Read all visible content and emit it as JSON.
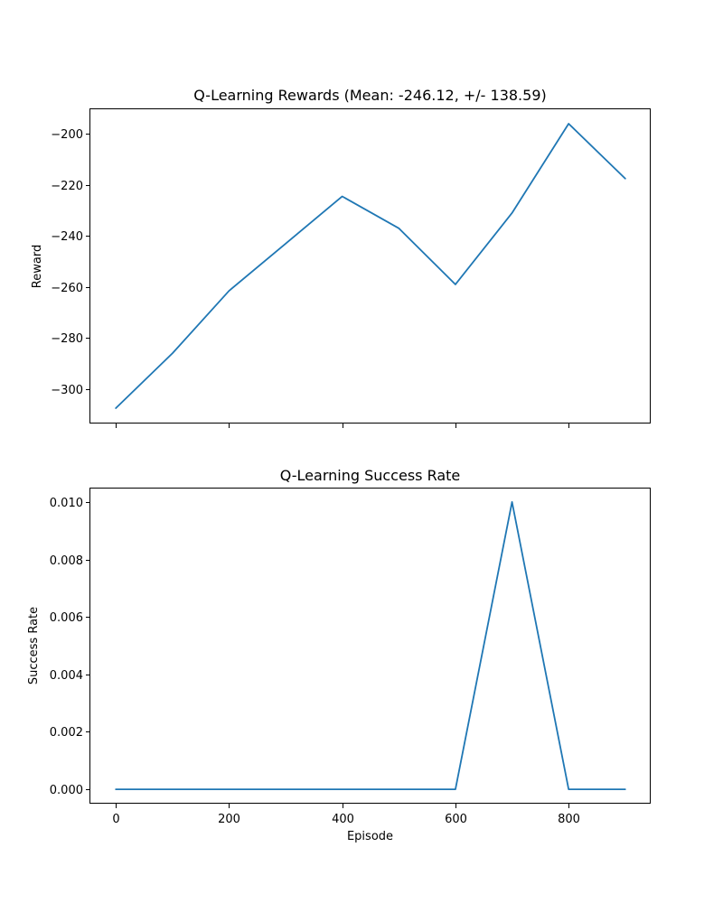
{
  "chart_data": [
    {
      "type": "line",
      "title": "Q-Learning Rewards (Mean: -246.12, +/- 138.59)",
      "xlabel": "",
      "ylabel": "Reward",
      "x": [
        0,
        100,
        200,
        300,
        400,
        500,
        600,
        700,
        800,
        900
      ],
      "series": [
        {
          "values": [
            -307.5,
            -286.0,
            -261.5,
            -243.0,
            -224.5,
            -237.0,
            -259.0,
            -231.0,
            -196.0,
            -217.5
          ],
          "color": "#1f77b4"
        }
      ],
      "xlim": [
        -45,
        945
      ],
      "ylim": [
        -313.5,
        -190.0
      ],
      "xticks": [
        0,
        200,
        400,
        600,
        800
      ],
      "yticks": [
        -300,
        -280,
        -260,
        -240,
        -220,
        -200
      ],
      "ytick_labels": [
        "−300",
        "−280",
        "−260",
        "−240",
        "−220",
        "−200"
      ],
      "show_xtick_labels": false,
      "grid": false
    },
    {
      "type": "line",
      "title": "Q-Learning Success Rate",
      "xlabel": "Episode",
      "ylabel": "Success Rate",
      "x": [
        0,
        100,
        200,
        300,
        400,
        500,
        600,
        700,
        800,
        900
      ],
      "series": [
        {
          "values": [
            0,
            0,
            0,
            0,
            0,
            0,
            0,
            0.01,
            0,
            0
          ],
          "color": "#1f77b4"
        }
      ],
      "xlim": [
        -45,
        945
      ],
      "ylim": [
        -0.0005,
        0.0105
      ],
      "xticks": [
        0,
        200,
        400,
        600,
        800
      ],
      "xtick_labels": [
        "0",
        "200",
        "400",
        "600",
        "800"
      ],
      "yticks": [
        0,
        0.002,
        0.004,
        0.006,
        0.008,
        0.01
      ],
      "ytick_labels": [
        "0.000",
        "0.002",
        "0.004",
        "0.006",
        "0.008",
        "0.010"
      ],
      "show_xtick_labels": true,
      "grid": false
    }
  ]
}
